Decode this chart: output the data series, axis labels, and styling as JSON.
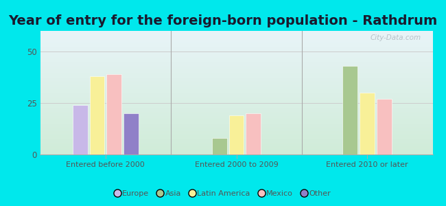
{
  "title": "Year of entry for the foreign-born population - Rathdrum",
  "groups": [
    "Entered before 2000",
    "Entered 2000 to 2009",
    "Entered 2010 or later"
  ],
  "categories": [
    "Europe",
    "Asia",
    "Latin America",
    "Mexico",
    "Other"
  ],
  "values": [
    [
      24,
      0,
      38,
      39,
      20
    ],
    [
      0,
      8,
      19,
      20,
      0
    ],
    [
      0,
      43,
      30,
      27,
      0
    ]
  ],
  "bar_colors": [
    "#c8b8e8",
    "#a8c890",
    "#f8f098",
    "#f8c0c0",
    "#9080c8"
  ],
  "ylim": [
    0,
    60
  ],
  "yticks": [
    0,
    25,
    50
  ],
  "fig_bg": "#00e8ec",
  "plot_bg_top": "#e8f4f8",
  "plot_bg_bottom": "#d0ecd8",
  "watermark": "City-Data.com",
  "title_fontsize": 14,
  "tick_label_color": "#555555",
  "grid_color": "#cccccc"
}
